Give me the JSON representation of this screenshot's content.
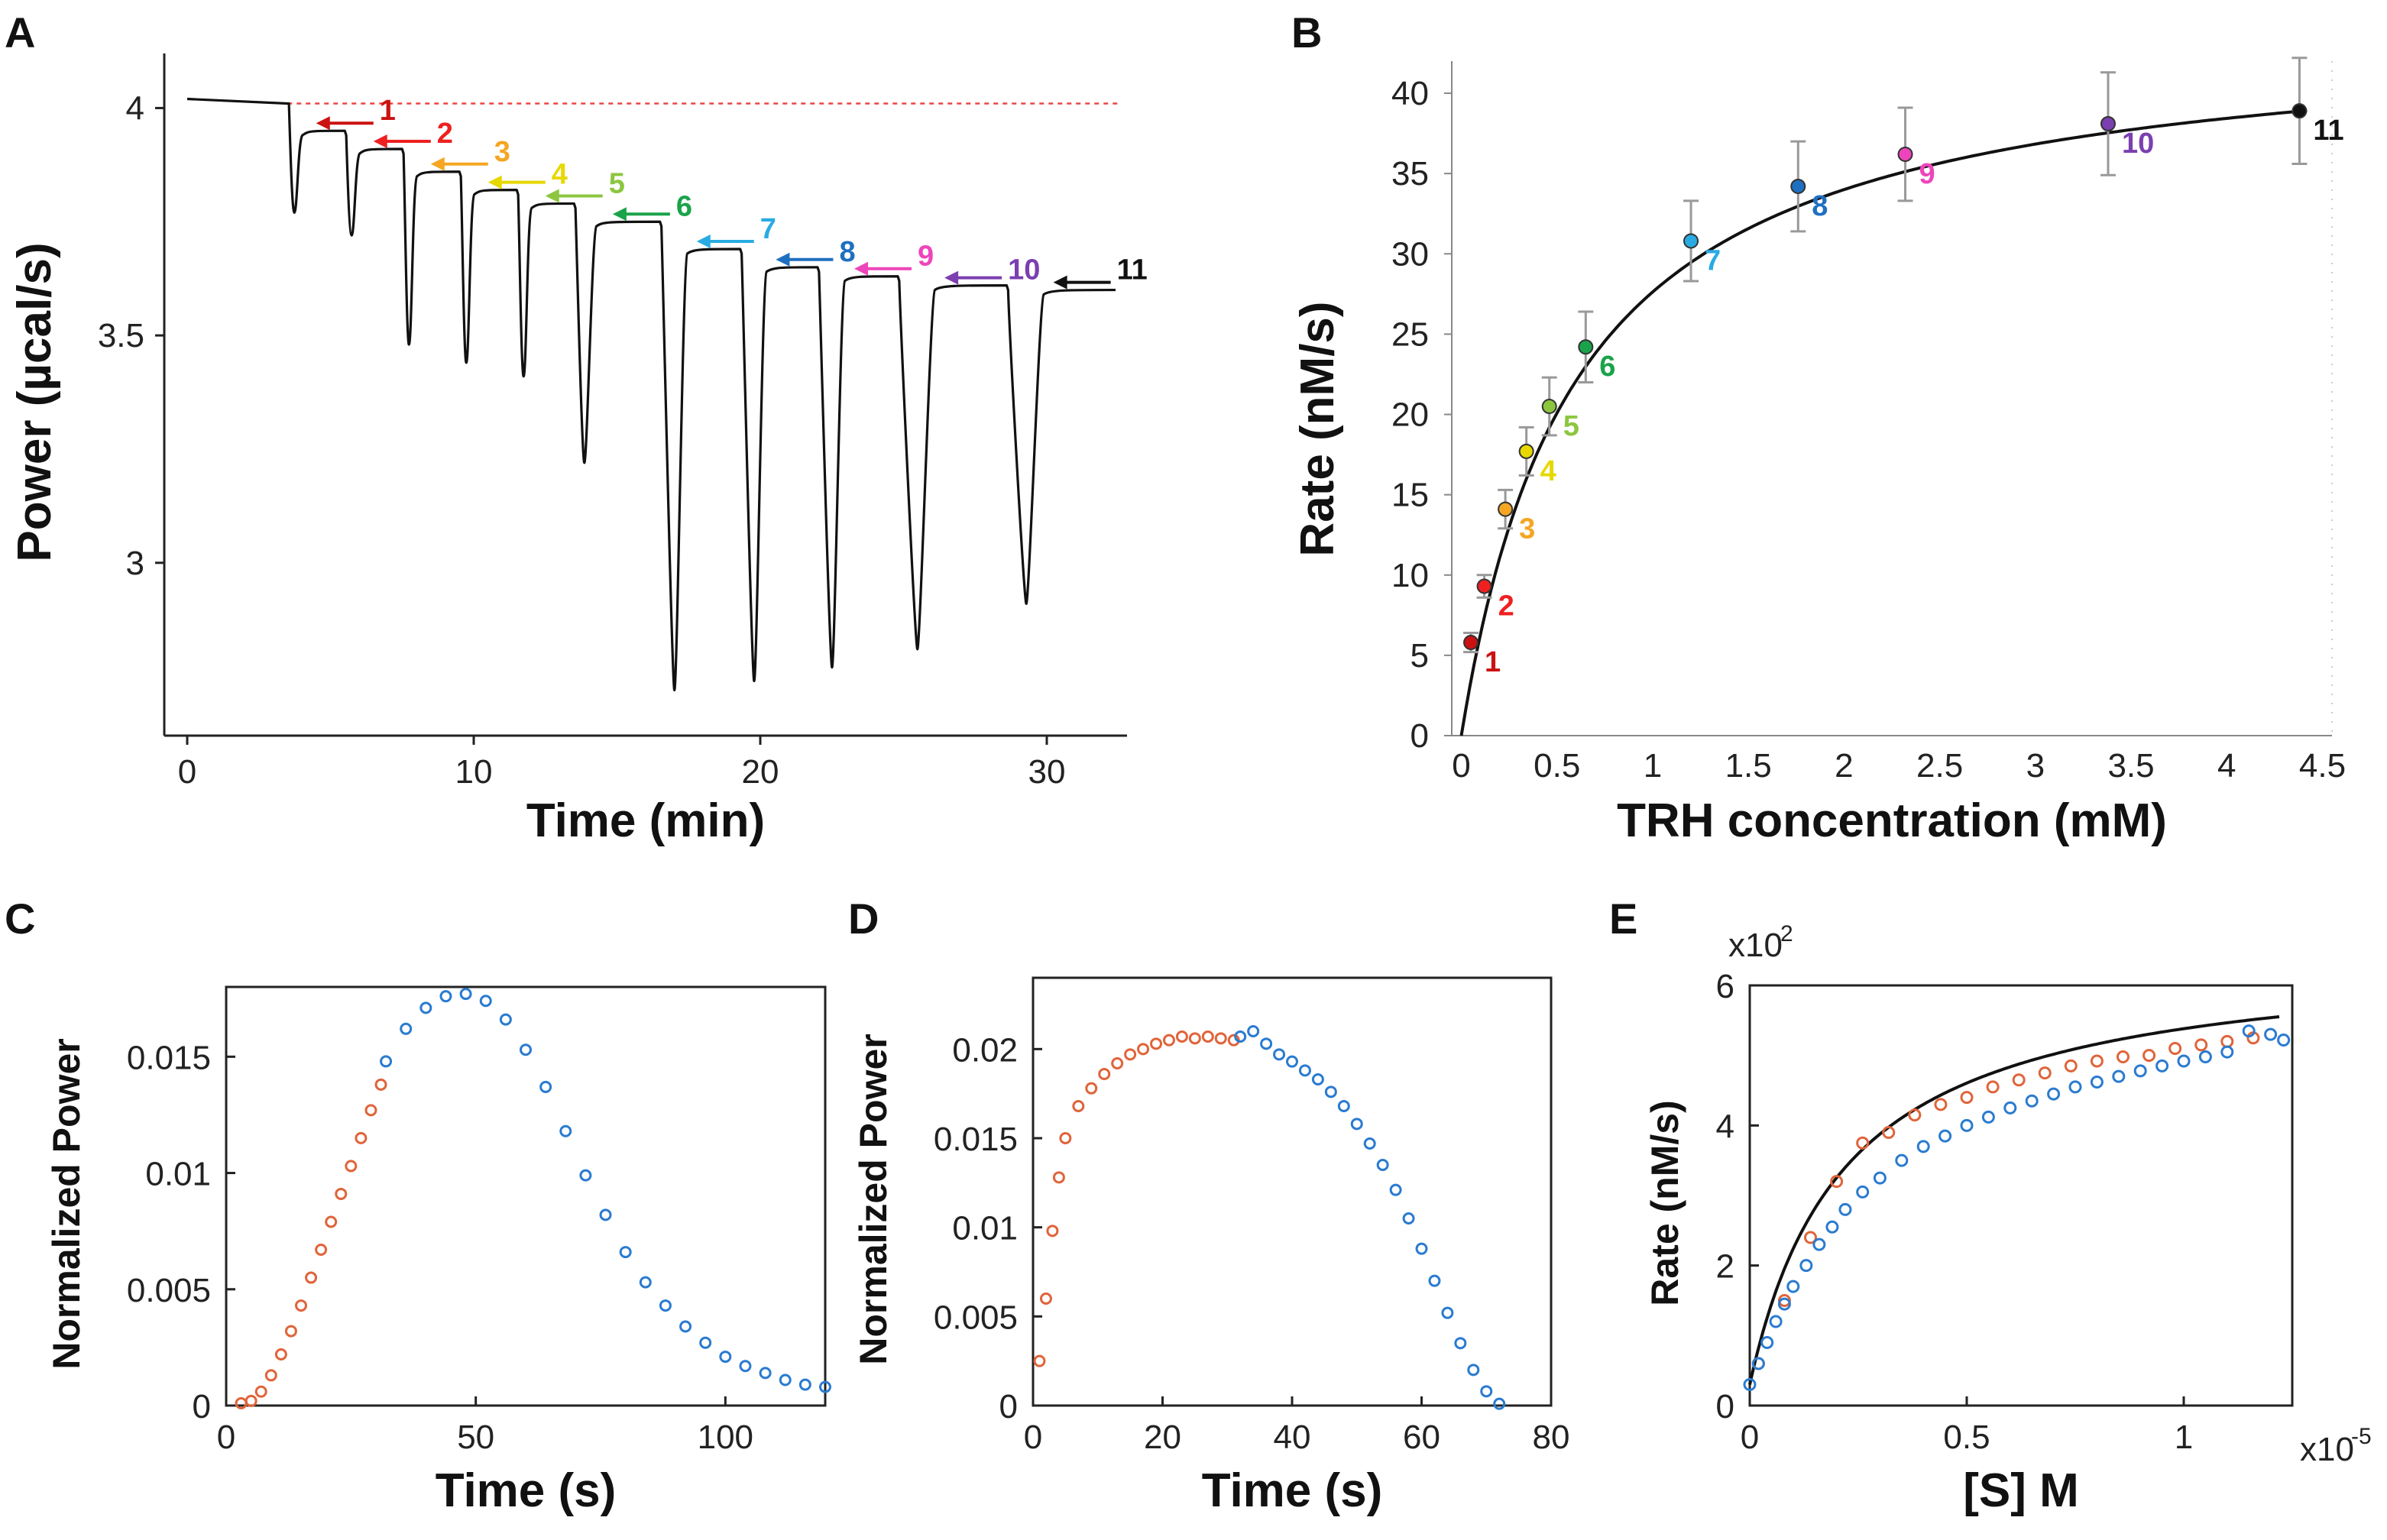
{
  "chart_data": [
    {
      "panel": "A",
      "type": "line",
      "xlabel": "Time (min)",
      "ylabel": "Power (µcal/s)",
      "xlim": [
        -0.8,
        32.8
      ],
      "ylim": [
        2.62,
        4.12
      ],
      "xticks": [
        0,
        10,
        20,
        30
      ],
      "yticks": [
        3,
        3.5,
        4
      ],
      "ytick_labels": [
        "3",
        "3.5",
        "4"
      ],
      "reference_level": 4.01,
      "reference_color": "#ee4444",
      "trace_color": "#111111",
      "baseline_start": 4.02,
      "injections": [
        {
          "label": "1",
          "t0": 3.5,
          "t1": 5.5,
          "trough": 3.77,
          "level": 3.95,
          "color": "#cc1111"
        },
        {
          "label": "2",
          "t0": 5.5,
          "t1": 7.5,
          "trough": 3.72,
          "level": 3.91,
          "color": "#ee2020"
        },
        {
          "label": "3",
          "t0": 7.5,
          "t1": 9.5,
          "trough": 3.48,
          "level": 3.86,
          "color": "#f5a623"
        },
        {
          "label": "4",
          "t0": 9.5,
          "t1": 11.5,
          "trough": 3.44,
          "level": 3.82,
          "color": "#e6d800"
        },
        {
          "label": "5",
          "t0": 11.5,
          "t1": 13.5,
          "trough": 3.41,
          "level": 3.79,
          "color": "#8cc63f"
        },
        {
          "label": "6",
          "t0": 13.5,
          "t1": 16.5,
          "trough": 3.22,
          "level": 3.75,
          "color": "#1aa34a"
        },
        {
          "label": "7",
          "t0": 16.5,
          "t1": 19.3,
          "trough": 2.72,
          "level": 3.69,
          "color": "#29abe2"
        },
        {
          "label": "8",
          "t0": 19.3,
          "t1": 22.0,
          "trough": 2.74,
          "level": 3.65,
          "color": "#1f6fc0"
        },
        {
          "label": "9",
          "t0": 22.0,
          "t1": 24.8,
          "trough": 2.77,
          "level": 3.63,
          "color": "#ee44bb"
        },
        {
          "label": "10",
          "t0": 24.8,
          "t1": 28.6,
          "trough": 2.81,
          "level": 3.61,
          "color": "#7b3fb0"
        },
        {
          "label": "11",
          "t0": 28.6,
          "t1": 32.4,
          "trough": 2.91,
          "level": 3.6,
          "color": "#111111"
        }
      ]
    },
    {
      "panel": "B",
      "type": "scatter",
      "xlabel": "TRH concentration (mM)",
      "ylabel": "Rate (nM/s)",
      "xlim": [
        -0.05,
        4.55
      ],
      "ylim": [
        0,
        42
      ],
      "xticks": [
        0,
        0.5,
        1,
        1.5,
        2,
        2.5,
        3,
        3.5,
        4,
        4.5
      ],
      "xtick_labels": [
        "0",
        "0.5",
        "1",
        "1.5",
        "2",
        "2.5",
        "3",
        "3.5",
        "4",
        "4.5"
      ],
      "yticks": [
        0,
        5,
        10,
        15,
        20,
        25,
        30,
        35,
        40
      ],
      "fit": {
        "model": "Michaelis-Menten",
        "vmax": 44.2,
        "km": 0.6,
        "color": "#111111"
      },
      "errorbar_color": "#999999",
      "points": [
        {
          "label": "1",
          "x": 0.05,
          "y": 5.8,
          "err": 0.6,
          "color": "#cc1111"
        },
        {
          "label": "2",
          "x": 0.12,
          "y": 9.3,
          "err": 0.7,
          "color": "#ee2020"
        },
        {
          "label": "3",
          "x": 0.23,
          "y": 14.1,
          "err": 1.2,
          "color": "#f5a623"
        },
        {
          "label": "4",
          "x": 0.34,
          "y": 17.7,
          "err": 1.5,
          "color": "#e6d800"
        },
        {
          "label": "5",
          "x": 0.46,
          "y": 20.5,
          "err": 1.8,
          "color": "#8cc63f"
        },
        {
          "label": "6",
          "x": 0.65,
          "y": 24.2,
          "err": 2.2,
          "color": "#1aa34a"
        },
        {
          "label": "7",
          "x": 1.2,
          "y": 30.8,
          "err": 2.5,
          "color": "#29abe2"
        },
        {
          "label": "8",
          "x": 1.76,
          "y": 34.2,
          "err": 2.8,
          "color": "#1f6fc0"
        },
        {
          "label": "9",
          "x": 2.32,
          "y": 36.2,
          "err": 2.9,
          "color": "#ee44bb"
        },
        {
          "label": "10",
          "x": 3.38,
          "y": 38.1,
          "err": 3.2,
          "color": "#7b3fb0"
        },
        {
          "label": "11",
          "x": 4.38,
          "y": 38.9,
          "err": 3.3,
          "color": "#111111"
        }
      ]
    },
    {
      "panel": "C",
      "type": "scatter",
      "xlabel": "Time (s)",
      "ylabel": "Normalized Power",
      "xlim": [
        0,
        120
      ],
      "ylim": [
        0,
        0.018
      ],
      "xticks": [
        0,
        50,
        100
      ],
      "yticks": [
        0,
        0.005,
        0.01,
        0.015
      ],
      "ytick_labels": [
        "0",
        "0.005",
        "0.01",
        "0.015"
      ],
      "series": [
        {
          "name": "orange",
          "color": "#e0643a",
          "x": [
            3,
            5,
            7,
            9,
            11,
            13,
            15,
            17,
            19,
            21,
            23,
            25,
            27,
            29,
            31
          ],
          "y": [
            0.0001,
            0.0002,
            0.0006,
            0.0013,
            0.0022,
            0.0032,
            0.0043,
            0.0055,
            0.0067,
            0.0079,
            0.0091,
            0.0103,
            0.0115,
            0.0127,
            0.0138
          ]
        },
        {
          "name": "blue",
          "color": "#2a7bd0",
          "x": [
            32,
            36,
            40,
            44,
            48,
            52,
            56,
            60,
            64,
            68,
            72,
            76,
            80,
            84,
            88,
            92,
            96,
            100,
            104,
            108,
            112,
            116,
            120
          ],
          "y": [
            0.0148,
            0.0162,
            0.0171,
            0.0176,
            0.0177,
            0.0174,
            0.0166,
            0.0153,
            0.0137,
            0.0118,
            0.0099,
            0.0082,
            0.0066,
            0.0053,
            0.0043,
            0.0034,
            0.0027,
            0.0021,
            0.0017,
            0.0014,
            0.0011,
            0.0009,
            0.0008
          ]
        }
      ]
    },
    {
      "panel": "D",
      "type": "scatter",
      "xlabel": "Time (s)",
      "ylabel": "Normalized Power",
      "xlim": [
        0,
        80
      ],
      "ylim": [
        0,
        0.024
      ],
      "xticks": [
        0,
        20,
        40,
        60,
        80
      ],
      "yticks": [
        0,
        0.005,
        0.01,
        0.015,
        0.02
      ],
      "ytick_labels": [
        "0",
        "0.005",
        "0.01",
        "0.015",
        "0.02"
      ],
      "series": [
        {
          "name": "orange",
          "color": "#e0643a",
          "x": [
            1,
            2,
            3,
            4,
            5,
            7,
            9,
            11,
            13,
            15,
            17,
            19,
            21,
            23,
            25,
            27,
            29,
            31
          ],
          "y": [
            0.0025,
            0.006,
            0.0098,
            0.0128,
            0.015,
            0.0168,
            0.0178,
            0.0186,
            0.0192,
            0.0197,
            0.02,
            0.0203,
            0.0205,
            0.0207,
            0.0206,
            0.0207,
            0.0206,
            0.0205
          ]
        },
        {
          "name": "blue",
          "color": "#2a7bd0",
          "x": [
            32,
            34,
            36,
            38,
            40,
            42,
            44,
            46,
            48,
            50,
            52,
            54,
            56,
            58,
            60,
            62,
            64,
            66,
            68,
            70,
            72
          ],
          "y": [
            0.0207,
            0.021,
            0.0203,
            0.0197,
            0.0193,
            0.0188,
            0.0183,
            0.0176,
            0.0168,
            0.0158,
            0.0147,
            0.0135,
            0.0121,
            0.0105,
            0.0088,
            0.007,
            0.0052,
            0.0035,
            0.002,
            0.0008,
            0.0001
          ]
        }
      ]
    },
    {
      "panel": "E",
      "type": "scatter",
      "xlabel": "[S] M",
      "ylabel": "Rate (nM/s)",
      "y_multiplier": "x10",
      "y_multiplier_exp": "2",
      "x_multiplier": "x10",
      "x_multiplier_exp": "-5",
      "xlim": [
        0,
        1.25
      ],
      "ylim": [
        0,
        6
      ],
      "xticks": [
        0,
        0.5,
        1
      ],
      "xtick_labels": [
        "0",
        "0.5",
        "1"
      ],
      "yticks": [
        0,
        2,
        4,
        6
      ],
      "fit": {
        "model": "Michaelis-Menten",
        "vmax": 6.2,
        "km": 0.22,
        "color": "#111111"
      },
      "series": [
        {
          "name": "orange",
          "color": "#e0643a",
          "x": [
            0.02,
            0.08,
            0.14,
            0.2,
            0.26,
            0.32,
            0.38,
            0.44,
            0.5,
            0.56,
            0.62,
            0.68,
            0.74,
            0.8,
            0.86,
            0.92,
            0.98,
            1.04,
            1.1,
            1.16
          ],
          "y": [
            0.6,
            1.5,
            2.4,
            3.2,
            3.75,
            3.9,
            4.15,
            4.3,
            4.4,
            4.55,
            4.65,
            4.75,
            4.85,
            4.92,
            4.98,
            5.0,
            5.1,
            5.15,
            5.2,
            5.25
          ]
        },
        {
          "name": "blue",
          "color": "#2a7bd0",
          "x": [
            0.0,
            0.02,
            0.04,
            0.06,
            0.08,
            0.1,
            0.13,
            0.16,
            0.19,
            0.22,
            0.26,
            0.3,
            0.35,
            0.4,
            0.45,
            0.5,
            0.55,
            0.6,
            0.65,
            0.7,
            0.75,
            0.8,
            0.85,
            0.9,
            0.95,
            1.0,
            1.05,
            1.1,
            1.15,
            1.2,
            1.23
          ],
          "y": [
            0.3,
            0.6,
            0.9,
            1.2,
            1.45,
            1.7,
            2.0,
            2.3,
            2.55,
            2.8,
            3.05,
            3.25,
            3.5,
            3.7,
            3.85,
            4.0,
            4.12,
            4.25,
            4.35,
            4.45,
            4.55,
            4.62,
            4.7,
            4.78,
            4.85,
            4.92,
            4.98,
            5.05,
            5.35,
            5.3,
            5.22
          ]
        }
      ]
    }
  ]
}
